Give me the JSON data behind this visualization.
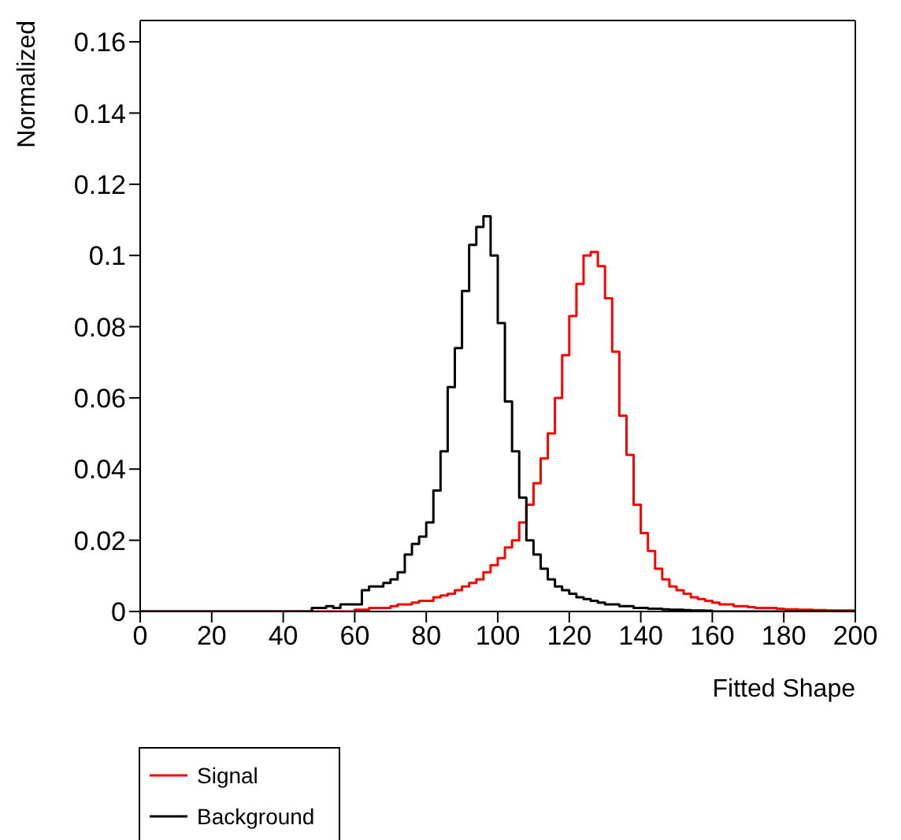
{
  "chart_data": {
    "type": "histogram",
    "xlabel": "Fitted Shape",
    "ylabel": "Normalized",
    "bins": [
      0,
      2,
      4,
      6,
      8,
      10,
      12,
      14,
      16,
      18,
      20,
      22,
      24,
      26,
      28,
      30,
      32,
      34,
      36,
      38,
      40,
      42,
      44,
      46,
      48,
      50,
      52,
      54,
      56,
      58,
      60,
      62,
      64,
      66,
      68,
      70,
      72,
      74,
      76,
      78,
      80,
      82,
      84,
      86,
      88,
      90,
      92,
      94,
      96,
      98,
      100,
      102,
      104,
      106,
      108,
      110,
      112,
      114,
      116,
      118,
      120,
      122,
      124,
      126,
      128,
      130,
      132,
      134,
      136,
      138,
      140,
      142,
      144,
      146,
      148,
      150,
      152,
      154,
      156,
      158,
      160,
      162,
      164,
      166,
      168,
      170,
      172,
      174,
      176,
      178,
      180,
      182,
      184,
      186,
      188,
      190,
      192,
      194,
      196,
      198,
      200
    ],
    "series": [
      {
        "name": "Signal",
        "color": "#ff0000",
        "values": [
          0,
          0,
          0,
          0,
          0,
          0,
          0,
          0,
          0,
          0,
          0,
          0,
          0,
          0,
          0,
          0,
          0,
          0,
          0,
          0,
          0,
          0,
          0,
          0,
          0,
          0,
          0,
          0,
          0,
          0,
          0.0005,
          0.0005,
          0.001,
          0.001,
          0.001,
          0.0015,
          0.002,
          0.002,
          0.0025,
          0.003,
          0.003,
          0.004,
          0.0045,
          0.005,
          0.006,
          0.007,
          0.008,
          0.009,
          0.011,
          0.013,
          0.015,
          0.018,
          0.02,
          0.025,
          0.03,
          0.036,
          0.043,
          0.05,
          0.06,
          0.072,
          0.083,
          0.092,
          0.1,
          0.101,
          0.097,
          0.088,
          0.073,
          0.055,
          0.044,
          0.03,
          0.022,
          0.017,
          0.012,
          0.009,
          0.007,
          0.006,
          0.005,
          0.004,
          0.0035,
          0.003,
          0.0025,
          0.002,
          0.002,
          0.0015,
          0.0015,
          0.0012,
          0.001,
          0.001,
          0.001,
          0.0008,
          0.0006,
          0.0006,
          0.0005,
          0.0005,
          0.0004,
          0.0004,
          0.0003,
          0.0003,
          0.0003,
          0.0003
        ]
      },
      {
        "name": "Background",
        "color": "#000000",
        "values": [
          0,
          0,
          0,
          0,
          0,
          0,
          0,
          0,
          0,
          0,
          0,
          0,
          0,
          0,
          0,
          0,
          0,
          0,
          0,
          0,
          0,
          0,
          0,
          0,
          0.001,
          0.001,
          0.0015,
          0.001,
          0.002,
          0.002,
          0.002,
          0.006,
          0.007,
          0.007,
          0.008,
          0.009,
          0.011,
          0.016,
          0.019,
          0.021,
          0.025,
          0.034,
          0.045,
          0.063,
          0.074,
          0.09,
          0.103,
          0.108,
          0.111,
          0.1,
          0.081,
          0.059,
          0.045,
          0.032,
          0.02,
          0.016,
          0.012,
          0.009,
          0.007,
          0.006,
          0.005,
          0.004,
          0.0035,
          0.003,
          0.0025,
          0.002,
          0.002,
          0.0015,
          0.0015,
          0.001,
          0.001,
          0.0008,
          0.0008,
          0.0006,
          0.0005,
          0.0005,
          0.0004,
          0.0003,
          0.0003,
          0.0002,
          0,
          0,
          0,
          0,
          0,
          0,
          0,
          0,
          0,
          0,
          0,
          0,
          0,
          0,
          0,
          0,
          0,
          0,
          0,
          0
        ]
      }
    ],
    "xlim": [
      0,
      200
    ],
    "xticks": [
      0,
      20,
      40,
      60,
      80,
      100,
      120,
      140,
      160,
      180,
      200
    ],
    "ylim": [
      0,
      0.166
    ],
    "yticks": [
      0,
      0.02,
      0.04,
      0.06,
      0.08,
      0.1,
      0.12,
      0.14,
      0.16
    ],
    "legend": "bottom left"
  }
}
